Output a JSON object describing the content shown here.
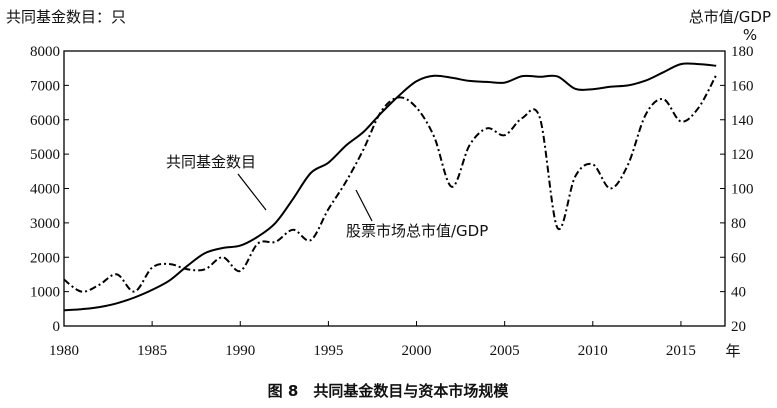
{
  "chart_data": {
    "type": "line",
    "caption": "图 8　共同基金数目与资本市场规模",
    "left_axis": {
      "label": "共同基金数目：只",
      "ylim": [
        0,
        8000
      ],
      "ticks": [
        0,
        1000,
        2000,
        3000,
        4000,
        5000,
        6000,
        7000,
        8000
      ]
    },
    "right_axis": {
      "label_line1": "总市值/GDP",
      "label_line2": "%",
      "ylim": [
        20,
        180
      ],
      "ticks": [
        20,
        40,
        60,
        80,
        100,
        120,
        140,
        160,
        180
      ]
    },
    "x_axis": {
      "xlim": [
        1980,
        2017.5
      ],
      "ticks": [
        1980,
        1985,
        1990,
        1995,
        2000,
        2005,
        2010,
        2015
      ],
      "unit_label": "年"
    },
    "series": [
      {
        "name": "共同基金数目",
        "axis": "left",
        "x": [
          1980,
          1981,
          1982,
          1983,
          1984,
          1985,
          1986,
          1987,
          1988,
          1989,
          1990,
          1991,
          1992,
          1993,
          1994,
          1995,
          1996,
          1997,
          1998,
          1999,
          2000,
          2001,
          2002,
          2003,
          2004,
          2005,
          2006,
          2007,
          2008,
          2009,
          2010,
          2011,
          2012,
          2013,
          2014,
          2015,
          2016,
          2017
        ],
        "values": [
          460,
          490,
          550,
          660,
          830,
          1050,
          1330,
          1750,
          2120,
          2270,
          2340,
          2600,
          3000,
          3700,
          4450,
          4750,
          5250,
          5650,
          6200,
          6700,
          7120,
          7280,
          7220,
          7130,
          7100,
          7080,
          7270,
          7250,
          7260,
          6900,
          6890,
          6960,
          7000,
          7140,
          7380,
          7620,
          7620,
          7570
        ]
      },
      {
        "name": "股票市场总市值/GDP",
        "axis": "right",
        "x": [
          1980,
          1981,
          1982,
          1983,
          1984,
          1985,
          1986,
          1987,
          1988,
          1989,
          1990,
          1991,
          1992,
          1993,
          1994,
          1995,
          1996,
          1997,
          1998,
          1999,
          2000,
          2001,
          2002,
          2003,
          2004,
          2005,
          2006,
          2007,
          2008,
          2009,
          2010,
          2011,
          2012,
          2013,
          2014,
          2015,
          2016,
          2017
        ],
        "values": [
          47,
          40,
          44,
          50,
          40,
          54,
          56,
          53,
          53,
          60,
          52,
          68,
          69,
          76,
          70,
          88,
          104,
          123,
          145,
          153,
          147,
          130,
          101,
          125,
          135,
          131,
          141,
          141,
          77,
          107,
          114,
          100,
          114,
          143,
          152,
          139,
          147,
          166
        ]
      }
    ],
    "annotations": [
      {
        "text": "共同基金数目",
        "series": "共同基金数目"
      },
      {
        "text": "股票市场总市值/GDP",
        "series": "股票市场总市值/GDP"
      }
    ]
  }
}
